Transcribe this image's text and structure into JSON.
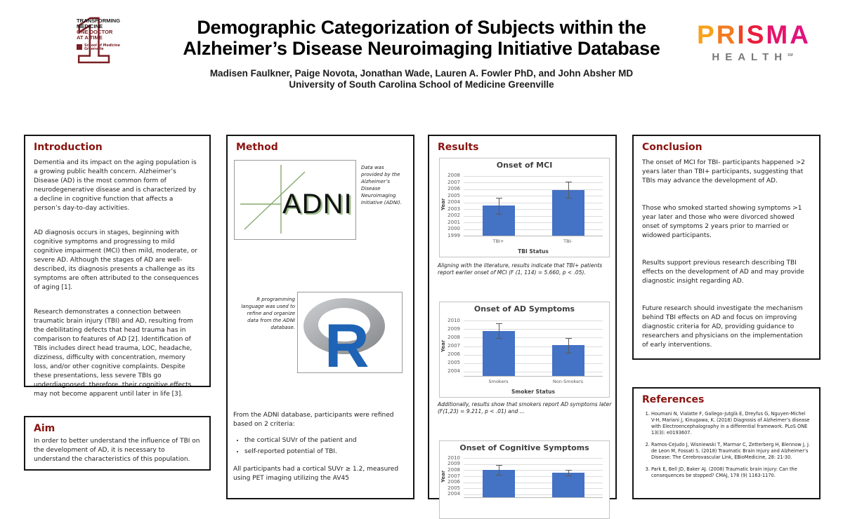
{
  "accent_heading_color": "#8a1410",
  "header": {
    "title_line1": "Demographic Categorization of Subjects within the",
    "title_line2": "Alzheimer’s Disease Neuroimaging Initiative Database",
    "authors": "Madisen Faulkner, Paige Novota, Jonathan Wade, Lauren A. Fowler PhD, and John Absher MD",
    "affiliation": "University of South Carolina School of Medicine Greenville",
    "som_logo": {
      "numeral": "1",
      "line1": "TRANSFORMING",
      "line2": "MEDICINE",
      "line3": "ONE DOCTOR",
      "line4": "AT A TIME",
      "school_line1": "School of Medicine",
      "school_line2": "Greenville",
      "dark_red": "#7a1f24"
    },
    "prisma_logo": {
      "word": "PRISMA",
      "letter_colors": [
        "#F9A11B",
        "#F47B20",
        "#EF4123",
        "#EA1D3C",
        "#E5136B",
        "#DF137E"
      ],
      "sub": "HEALTH",
      "trademark": "SM",
      "sub_color": "#77797c"
    }
  },
  "sections": {
    "introduction": {
      "heading": "Introduction",
      "paragraphs": [
        "Dementia and its impact on the aging population is a growing public health concern. Alzheimer’s Disease (AD) is the most common form of neurodegenerative disease and is characterized by a decline in cognitive function that affects a person’s day-to-day activities.",
        "AD diagnosis occurs in stages, beginning with cognitive symptoms and progressing to mild cognitive impairment (MCI) then mild, moderate, or severe AD. Although the stages of AD are well-described, its diagnosis presents a challenge as its symptoms are often attributed to the consequences of aging [1].",
        "Research demonstrates a connection between traumatic brain injury (TBI) and AD, resulting from the debilitating defects that head trauma has in comparison to features of AD [2]. Identification of TBIs includes direct head trauma, LOC, headache, dizziness, difficulty with concentration, memory loss, and/or other cognitive complaints. Despite these presentations, less severe TBIs go underdiagnosed; therefore, their cognitive effects may not become apparent until later in life [3]."
      ]
    },
    "aim": {
      "heading": "Aim",
      "text": "In order to better understand the influence of TBI on the development of AD, it is necessary to understand the characteristics of this population."
    },
    "method": {
      "heading": "Method",
      "adni_logo_text": "ADNI",
      "adni_caption": "Data was provided by the Alzheimer’s Disease Neuroimaging Initiative (ADNI).",
      "r_logo_text": "R",
      "r_caption": "R programming language was used to refine and organize data from the ADNI database.",
      "criteria_intro": "From the ADNI database, participants were refined based on 2 criteria:",
      "criteria": [
        "the cortical SUVr of the patient and",
        "self-reported potential of TBI."
      ],
      "suvr_text": "All participants had a cortical SUVr ≥ 1.2, measured using PET imaging utilizing the AV45"
    },
    "results": {
      "heading": "Results"
    },
    "conclusion": {
      "heading": "Conclusion",
      "paragraphs": [
        "The onset of MCI for TBI- participants happened >2 years later than TBI+ participants, suggesting that TBIs may advance the development of AD.",
        "Those who smoked started showing symptoms >1 year later and those who were divorced showed onset of symptoms 2 years prior to married or widowed participants.",
        "Results support previous research describing TBI effects on the development of AD and may provide diagnostic insight regarding AD.",
        "Future research should investigate the mechanism behind TBI effects on AD and focus on improving diagnostic criteria for AD, providing guidance to researchers and physicians on the implementation of early interventions."
      ]
    },
    "references": {
      "heading": "References",
      "items": [
        "Houmani N, Vialatte F, Gallego-Jutglà E, Dreyfus G, Nguyen-Michel V-H, Mariani J, Kinugawa, K. (2018) Diagnosis of Alzheimer’s disease with Electroencephalography in a differential framework. PLoS ONE 13(3): e0193607.",
        "Ramos-Cejudo J, Wisniewski T, Marmar C, Zetterberg H, Blennow J, J. de Leon M, Fossati S. (2018) Traumatic Brain Injury and Alzheimer’s Disease: The Cerebrovascular Link, EBioMedicine, 28: 21-30.",
        "Park E, Bell JD, Baker AJ. (2008) Traumatic brain injury: Can the consequences be stopped? CMAJ, 178 (9) 1163-1170."
      ]
    }
  },
  "chart_data": [
    {
      "type": "bar",
      "title": "Onset of MCI",
      "categories": [
        "TBI+",
        "TBI-"
      ],
      "values": [
        2003.5,
        2005.9
      ],
      "errors": [
        1.2,
        1.2
      ],
      "xlabel": "TBI Status",
      "ylabel": "Year",
      "ylim": [
        1999,
        2008.5
      ],
      "yticks": [
        1999,
        2000,
        2001,
        2002,
        2003,
        2004,
        2005,
        2006,
        2007,
        2008
      ],
      "bar_color": "#4472C4",
      "grid": true,
      "legend": "none",
      "caption": "Aligning with the literature, results indicate that TBI+ patients report earlier onset of MCI (F (1, 114) = 5.660, p < .05)."
    },
    {
      "type": "bar",
      "title": "Onset of AD Symptoms",
      "categories": [
        "Smokers",
        "Non-Smokers"
      ],
      "values": [
        2008.8,
        2007.1
      ],
      "errors": [
        0.85,
        0.85
      ],
      "xlabel": "Smoker Status",
      "ylabel": "Year",
      "ylim": [
        2003.5,
        2010.5
      ],
      "yticks": [
        2004,
        2005,
        2006,
        2007,
        2008,
        2009,
        2010
      ],
      "bar_color": "#4472C4",
      "grid": true,
      "legend": "none",
      "caption": "Additionally, results show that smokers report AD symptoms later (F(1,23) = 9.211, p < .01) and ..."
    },
    {
      "type": "bar",
      "title": "Onset of Cognitive Symptoms",
      "categories": [
        "",
        ""
      ],
      "values": [
        2008.05,
        2007.6
      ],
      "errors": [
        0.85,
        0.45
      ],
      "xlabel": "",
      "ylabel": "Year",
      "ylim": [
        2003.5,
        2010.5
      ],
      "yticks": [
        2004,
        2005,
        2006,
        2007,
        2008,
        2009,
        2010
      ],
      "bar_color": "#4472C4",
      "grid": true,
      "legend": "none",
      "partially_visible": true
    }
  ]
}
